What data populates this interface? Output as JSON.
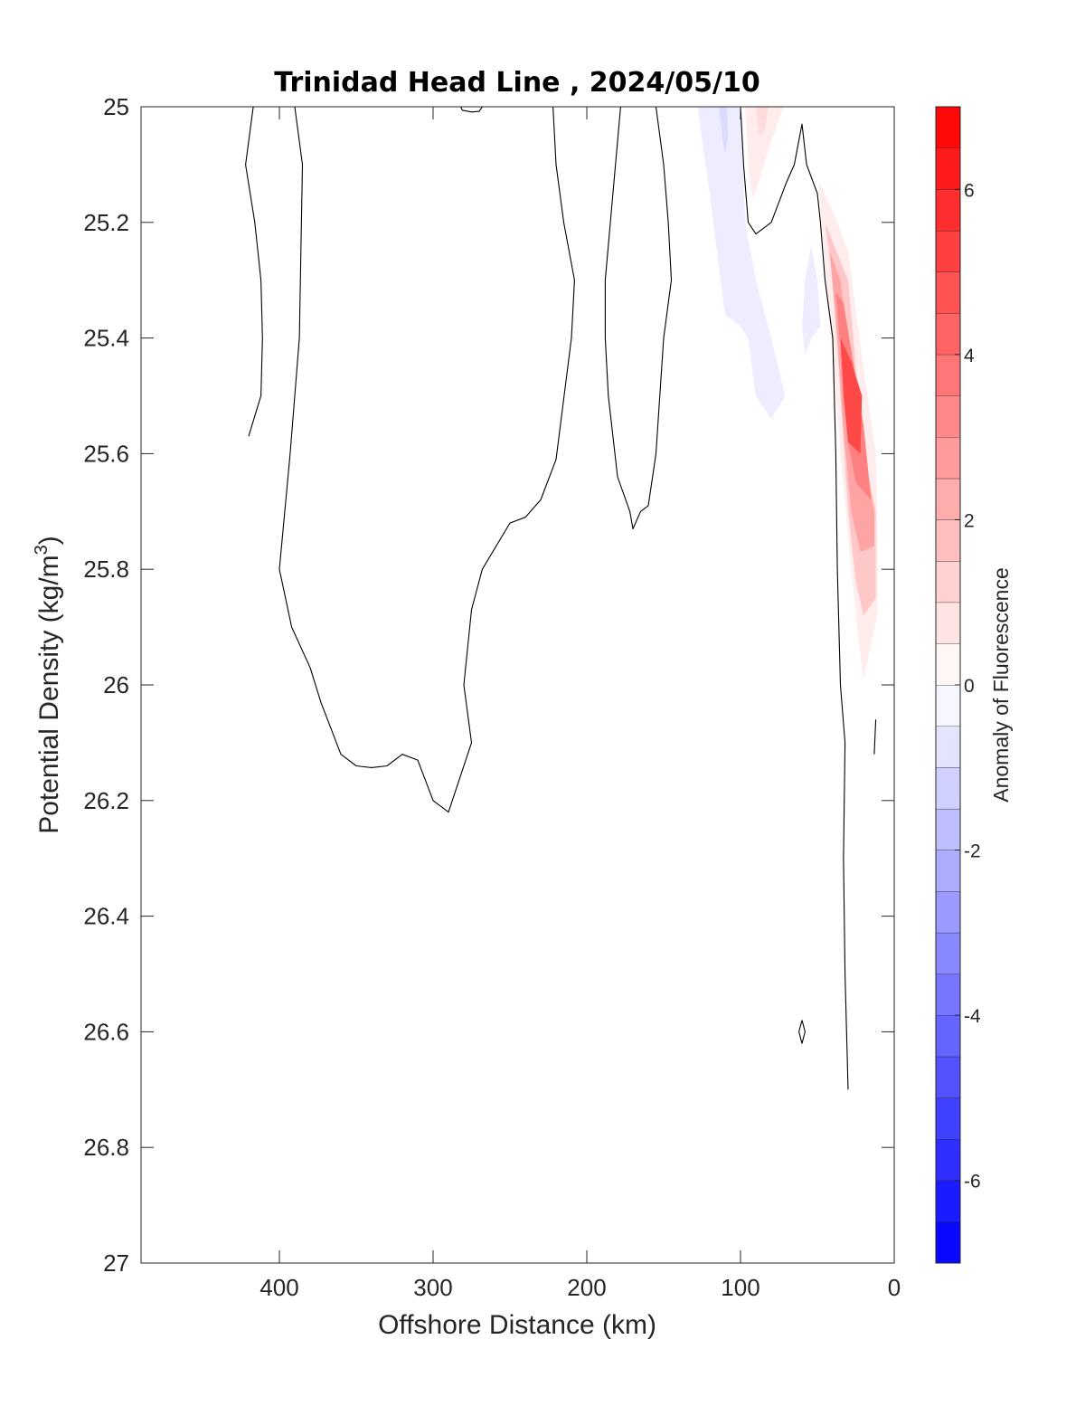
{
  "chart_data": {
    "type": "contour",
    "title": "Trinidad Head Line , 2024/05/10",
    "xlabel": "Offshore Distance (km)",
    "ylabel_main": "Potential Density (kg/m",
    "ylabel_sup": "3",
    "ylabel_close": ")",
    "xlim": [
      490,
      0
    ],
    "xdirection": "reversed",
    "ylim": [
      25,
      27
    ],
    "ydirection": "reversed",
    "xticks": [
      400,
      300,
      200,
      100,
      0
    ],
    "xtick_labels": [
      "400",
      "300",
      "200",
      "100",
      "0"
    ],
    "yticks": [
      25,
      25.2,
      25.4,
      25.6,
      25.8,
      26,
      26.2,
      26.4,
      26.6,
      26.8,
      27
    ],
    "ytick_labels": [
      "25",
      "25.2",
      "25.4",
      "25.6",
      "25.8",
      "26",
      "26.2",
      "26.4",
      "26.6",
      "26.8",
      "27"
    ],
    "grid": false,
    "colorbar": {
      "label": "Anomaly of Fluorescence",
      "range": [
        -7,
        7
      ],
      "step": 0.5,
      "ticks": [
        -6,
        -4,
        -2,
        0,
        2,
        4,
        6
      ],
      "tick_labels": [
        "-6",
        "-4",
        "-2",
        "0",
        "2",
        "4",
        "6"
      ],
      "color_low": "#0000ff",
      "color_mid": "#ffffff",
      "color_high": "#ff0000"
    },
    "zero_contours": [
      {
        "points": [
          [
            420,
            25.57
          ],
          [
            412,
            25.5
          ],
          [
            411,
            25.4
          ],
          [
            412,
            25.3
          ],
          [
            416,
            25.2
          ],
          [
            422,
            25.1
          ],
          [
            417,
            25.0
          ]
        ]
      },
      {
        "points": [
          [
            390,
            25.0
          ],
          [
            385,
            25.1
          ],
          [
            387,
            25.4
          ],
          [
            393,
            25.6
          ],
          [
            400,
            25.8
          ],
          [
            392,
            25.9
          ],
          [
            380,
            25.97
          ],
          [
            373,
            26.03
          ],
          [
            360,
            26.12
          ],
          [
            350,
            26.14
          ],
          [
            340,
            26.143
          ],
          [
            330,
            26.14
          ],
          [
            320,
            26.12
          ],
          [
            310,
            26.13
          ],
          [
            300,
            26.2
          ],
          [
            290,
            26.22
          ],
          [
            275,
            26.1
          ],
          [
            280,
            26.0
          ],
          [
            275,
            25.87
          ],
          [
            268,
            25.8
          ],
          [
            250,
            25.72
          ],
          [
            240,
            25.71
          ],
          [
            230,
            25.68
          ],
          [
            220,
            25.61
          ],
          [
            210,
            25.4
          ],
          [
            208,
            25.3
          ],
          [
            215,
            25.2
          ],
          [
            220,
            25.1
          ],
          [
            222,
            25.0
          ]
        ]
      },
      {
        "points": [
          [
            282,
            25.0
          ],
          [
            281,
            25.006
          ],
          [
            275,
            25.009
          ],
          [
            270,
            25.008
          ],
          [
            268,
            25.0
          ]
        ]
      },
      {
        "points": [
          [
            178,
            25.0
          ],
          [
            183,
            25.15
          ],
          [
            188,
            25.3
          ],
          [
            188,
            25.4
          ],
          [
            186,
            25.5
          ],
          [
            180,
            25.64
          ],
          [
            172,
            25.7
          ],
          [
            170,
            25.73
          ],
          [
            165,
            25.7
          ],
          [
            160,
            25.69
          ],
          [
            155,
            25.6
          ],
          [
            150,
            25.4
          ],
          [
            145,
            25.3
          ],
          [
            147,
            25.2
          ],
          [
            150,
            25.1
          ],
          [
            155,
            25.0
          ]
        ]
      },
      {
        "points": [
          [
            100,
            25.0
          ],
          [
            98,
            25.1
          ],
          [
            95,
            25.2
          ],
          [
            90,
            25.22
          ],
          [
            80,
            25.2
          ],
          [
            70,
            25.13
          ],
          [
            65,
            25.1
          ],
          [
            60,
            25.03
          ],
          [
            57,
            25.1
          ],
          [
            50,
            25.15
          ],
          [
            48,
            25.2
          ],
          [
            45,
            25.3
          ],
          [
            40,
            25.4
          ],
          [
            38,
            25.6
          ],
          [
            37,
            25.8
          ],
          [
            35,
            26.0
          ],
          [
            32,
            26.1
          ],
          [
            33,
            26.3
          ],
          [
            32,
            26.5
          ],
          [
            31,
            26.6
          ],
          [
            30,
            26.7
          ]
        ]
      },
      {
        "points": [
          [
            12,
            26.06
          ],
          [
            13,
            26.12
          ]
        ]
      },
      {
        "points": [
          [
            60,
            26.58
          ],
          [
            58,
            26.6
          ],
          [
            60,
            26.62
          ],
          [
            62,
            26.6
          ],
          [
            60,
            26.58
          ]
        ]
      }
    ],
    "filled_regions": [
      {
        "level": -0.5,
        "points": [
          [
            128,
            25.0
          ],
          [
            120,
            25.15
          ],
          [
            113,
            25.3
          ],
          [
            110,
            25.36
          ],
          [
            100,
            25.38
          ],
          [
            95,
            25.4
          ],
          [
            90,
            25.5
          ],
          [
            80,
            25.54
          ],
          [
            71,
            25.5
          ],
          [
            80,
            25.4
          ],
          [
            90,
            25.3
          ],
          [
            97,
            25.2
          ],
          [
            100,
            25.0
          ]
        ]
      },
      {
        "level": -1.0,
        "points": [
          [
            114,
            25.0
          ],
          [
            112,
            25.05
          ],
          [
            110,
            25.08
          ],
          [
            108,
            25.05
          ],
          [
            109,
            25.0
          ]
        ]
      },
      {
        "level": -0.5,
        "points": [
          [
            58,
            25.43
          ],
          [
            60,
            25.38
          ],
          [
            58,
            25.3
          ],
          [
            54,
            25.24
          ],
          [
            50,
            25.3
          ],
          [
            48,
            25.38
          ],
          [
            54,
            25.4
          ]
        ]
      },
      {
        "level": 0.5,
        "points": [
          [
            97,
            25.0
          ],
          [
            95,
            25.1
          ],
          [
            92,
            25.16
          ],
          [
            87,
            25.12
          ],
          [
            80,
            25.06
          ],
          [
            72,
            25.0
          ]
        ]
      },
      {
        "level": 1.0,
        "points": [
          [
            90,
            25.0
          ],
          [
            88,
            25.05
          ],
          [
            84,
            25.04
          ],
          [
            82,
            25.0
          ]
        ]
      },
      {
        "level": 0.5,
        "points": [
          [
            49,
            25.13
          ],
          [
            46,
            25.25
          ],
          [
            41,
            25.4
          ],
          [
            35,
            25.6
          ],
          [
            28,
            25.8
          ],
          [
            22,
            25.95
          ],
          [
            20,
            25.99
          ],
          [
            15,
            25.93
          ],
          [
            11,
            25.88
          ],
          [
            11,
            25.7
          ],
          [
            12,
            25.6
          ],
          [
            20,
            25.45
          ],
          [
            30,
            25.25
          ],
          [
            40,
            25.18
          ]
        ]
      },
      {
        "level": 1.5,
        "points": [
          [
            45,
            25.2
          ],
          [
            40,
            25.3
          ],
          [
            35,
            25.5
          ],
          [
            30,
            25.7
          ],
          [
            25,
            25.82
          ],
          [
            20,
            25.88
          ],
          [
            12,
            25.85
          ],
          [
            12,
            25.7
          ],
          [
            20,
            25.6
          ],
          [
            30,
            25.3
          ]
        ]
      },
      {
        "level": 2.5,
        "points": [
          [
            42,
            25.25
          ],
          [
            37,
            25.4
          ],
          [
            33,
            25.56
          ],
          [
            28,
            25.7
          ],
          [
            22,
            25.77
          ],
          [
            13,
            25.76
          ],
          [
            13,
            25.7
          ],
          [
            20,
            25.6
          ],
          [
            28,
            25.45
          ],
          [
            35,
            25.3
          ]
        ]
      },
      {
        "level": 3.5,
        "points": [
          [
            38,
            25.32
          ],
          [
            34,
            25.45
          ],
          [
            30,
            25.58
          ],
          [
            25,
            25.65
          ],
          [
            15,
            25.68
          ],
          [
            20,
            25.55
          ],
          [
            28,
            25.42
          ],
          [
            33,
            25.34
          ]
        ]
      },
      {
        "level": 5.0,
        "points": [
          [
            35,
            25.4
          ],
          [
            33,
            25.5
          ],
          [
            30,
            25.58
          ],
          [
            22,
            25.6
          ],
          [
            21,
            25.5
          ],
          [
            28,
            25.44
          ]
        ]
      }
    ]
  }
}
